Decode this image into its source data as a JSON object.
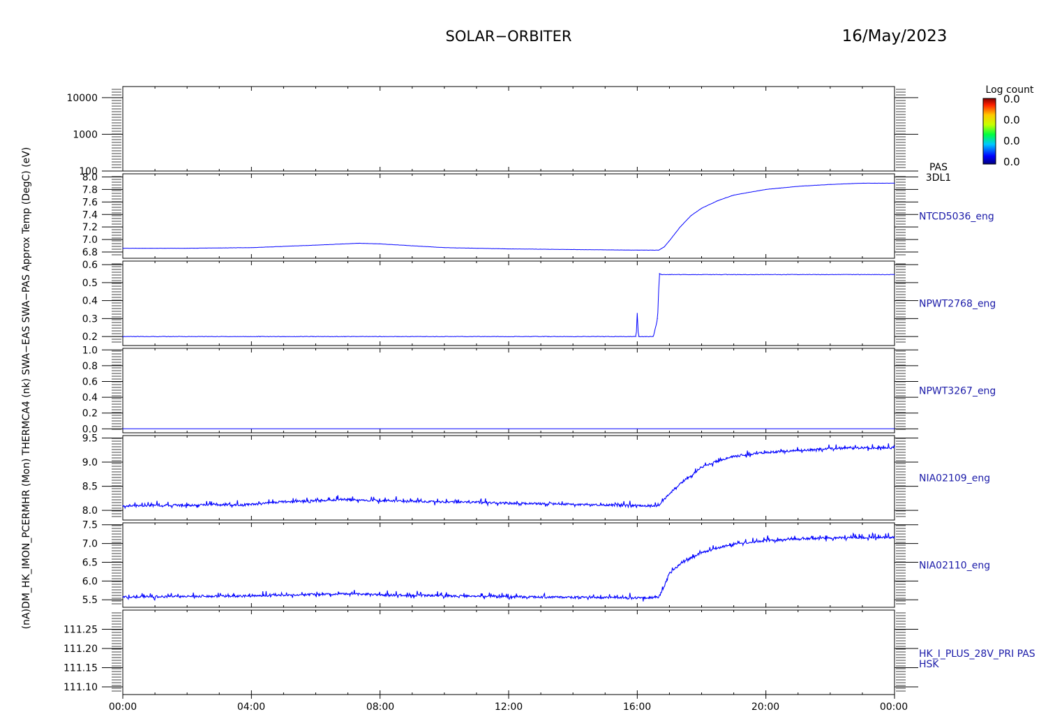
{
  "header": {
    "title": "SOLAR−ORBITER",
    "date": "16/May/2023"
  },
  "colorbar": {
    "title": "Log count",
    "labels": [
      "0.0",
      "0.0",
      "0.0",
      "0.0"
    ]
  },
  "y_axis_title_overlap": "(nA)DM_HK_IMON_PCERMHR (Mon) THERMCA4 (nk) SWA−EAS SWA−PAS Approx Temp (DegC) (eV)",
  "chart_data": [
    {
      "type": "heatmap",
      "panel_label": [
        "PAS",
        "3DL1"
      ],
      "ylabel": "(eV)",
      "yscale": "log",
      "ylim": [
        100,
        20000
      ],
      "ticks": [
        100,
        1000,
        10000
      ],
      "tick_labels": [
        "100",
        "1000",
        "10000"
      ],
      "values": []
    },
    {
      "type": "line",
      "panel_label": [
        "NTCD5036_eng"
      ],
      "ylim": [
        6.7,
        8.05
      ],
      "ticks": [
        6.8,
        7.0,
        7.2,
        7.4,
        7.6,
        7.8,
        8.0
      ],
      "tick_labels": [
        "6.8",
        "7.0",
        "7.2",
        "7.4",
        "7.6",
        "7.8",
        "8.0"
      ],
      "series": [
        {
          "x": [
            "00:00",
            "02:00",
            "04:00",
            "06:00",
            "07:20",
            "08:00",
            "10:00",
            "12:00",
            "14:00",
            "16:00",
            "16:40",
            "16:50",
            "17:00",
            "17:20",
            "17:40",
            "18:00",
            "18:30",
            "19:00",
            "20:00",
            "21:00",
            "22:00",
            "23:00",
            "24:00"
          ],
          "values": [
            6.86,
            6.86,
            6.87,
            6.91,
            6.94,
            6.93,
            6.87,
            6.85,
            6.84,
            6.83,
            6.83,
            6.88,
            6.98,
            7.2,
            7.38,
            7.5,
            7.62,
            7.71,
            7.8,
            7.85,
            7.88,
            7.9,
            7.9
          ]
        }
      ]
    },
    {
      "type": "line",
      "panel_label": [
        "NPWT2768_eng"
      ],
      "ylim": [
        0.15,
        0.62
      ],
      "ticks": [
        0.2,
        0.3,
        0.4,
        0.5,
        0.6
      ],
      "tick_labels": [
        "0.2",
        "0.3",
        "0.4",
        "0.5",
        "0.6"
      ],
      "series": [
        {
          "x": [
            "00:00",
            "08:00",
            "15:58",
            "16:00",
            "16:02",
            "16:04",
            "16:30",
            "16:38",
            "16:41",
            "16:44",
            "24:00"
          ],
          "values": [
            0.2,
            0.2,
            0.2,
            0.33,
            0.2,
            0.2,
            0.2,
            0.3,
            0.55,
            0.545,
            0.545
          ]
        }
      ]
    },
    {
      "type": "line",
      "panel_label": [
        "NPWT3267_eng"
      ],
      "ylim": [
        -0.05,
        1.02
      ],
      "ticks": [
        0.0,
        0.2,
        0.4,
        0.6,
        0.8,
        1.0
      ],
      "tick_labels": [
        "0.0",
        "0.2",
        "0.4",
        "0.6",
        "0.8",
        "1.0"
      ],
      "series": [
        {
          "x": [
            "00:00",
            "24:00"
          ],
          "values": [
            0.0,
            0.0
          ]
        }
      ]
    },
    {
      "type": "line",
      "panel_label": [
        "NIA02109_eng"
      ],
      "ylim": [
        7.8,
        9.55
      ],
      "ticks": [
        8.0,
        8.5,
        9.0,
        9.5
      ],
      "tick_labels": [
        "8.0",
        "8.5",
        "9.0",
        "9.5"
      ],
      "series": [
        {
          "x": [
            "00:00",
            "04:00",
            "05:00",
            "07:00",
            "08:00",
            "12:00",
            "16:00",
            "16:40",
            "17:00",
            "17:20",
            "17:40",
            "18:00",
            "18:30",
            "19:00",
            "20:00",
            "22:00",
            "24:00"
          ],
          "values": [
            8.1,
            8.12,
            8.18,
            8.22,
            8.2,
            8.15,
            8.1,
            8.1,
            8.35,
            8.55,
            8.72,
            8.9,
            9.02,
            9.12,
            9.2,
            9.28,
            9.3
          ]
        }
      ]
    },
    {
      "type": "line",
      "panel_label": [
        "NIA02110_eng"
      ],
      "ylim": [
        5.3,
        7.55
      ],
      "ticks": [
        5.5,
        6.0,
        6.5,
        7.0,
        7.5
      ],
      "tick_labels": [
        "5.5",
        "6.0",
        "6.5",
        "7.0",
        "7.5"
      ],
      "series": [
        {
          "x": [
            "00:00",
            "04:00",
            "07:00",
            "08:00",
            "12:00",
            "16:00",
            "16:40",
            "16:50",
            "17:00",
            "17:20",
            "17:40",
            "18:00",
            "18:30",
            "19:00",
            "20:00",
            "22:00",
            "24:00"
          ],
          "values": [
            5.58,
            5.6,
            5.66,
            5.63,
            5.58,
            5.55,
            5.56,
            5.85,
            6.2,
            6.45,
            6.62,
            6.75,
            6.88,
            6.98,
            7.08,
            7.15,
            7.16
          ]
        }
      ]
    },
    {
      "type": "line",
      "panel_label": [
        "HK_I_PLUS_28V_PRI PAS",
        "HSK"
      ],
      "ylim": [
        111.08,
        111.3
      ],
      "ticks": [
        111.1,
        111.15,
        111.2,
        111.25
      ],
      "tick_labels": [
        "111.10",
        "111.15",
        "111.20",
        "111.25"
      ],
      "series": []
    }
  ],
  "x_axis": {
    "tick_labels": [
      "00:00",
      "04:00",
      "08:00",
      "12:00",
      "16:00",
      "20:00",
      "00:00"
    ]
  },
  "colors": {
    "trace": "#0000ff",
    "axis": "#000000",
    "label": "#1a1aa8"
  }
}
